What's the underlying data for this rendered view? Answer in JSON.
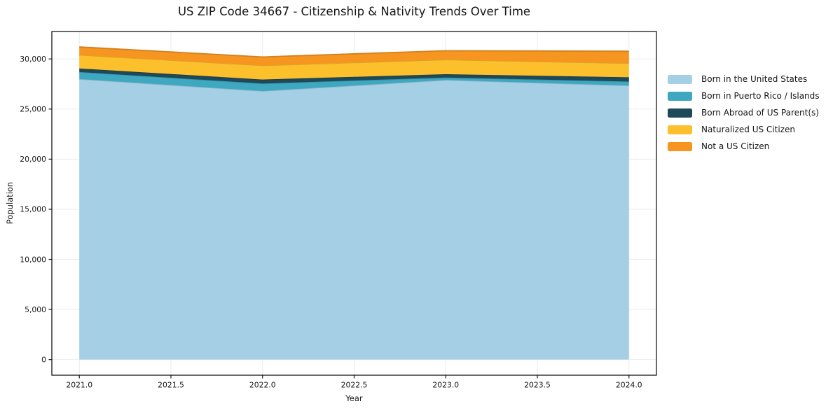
{
  "chart_data": {
    "type": "area",
    "stacked": true,
    "title": "US ZIP Code 34667 - Citizenship & Nativity Trends Over Time",
    "xlabel": "Year",
    "ylabel": "Population",
    "x": [
      2021,
      2022,
      2023,
      2024
    ],
    "series": [
      {
        "name": "Born in the United States",
        "color": "#a5cfe4",
        "values": [
          28000,
          26800,
          27900,
          27350
        ]
      },
      {
        "name": "Born in Puerto Rico / Islands",
        "color": "#3da8c0",
        "values": [
          700,
          750,
          250,
          400
        ]
      },
      {
        "name": "Born Abroad of US Parent(s)",
        "color": "#1f4859",
        "values": [
          350,
          400,
          330,
          420
        ]
      },
      {
        "name": "Naturalized US Citizen",
        "color": "#fcc02d",
        "values": [
          1350,
          1400,
          1450,
          1400
        ]
      },
      {
        "name": "Not a US Citizen",
        "color": "#f79521",
        "values": [
          800,
          850,
          890,
          1200
        ]
      }
    ],
    "xlim": [
      2020.85,
      2024.15
    ],
    "ylim": [
      -1560,
      32740
    ],
    "xticks": [
      2021.0,
      2021.5,
      2022.0,
      2022.5,
      2023.0,
      2023.5,
      2024.0
    ],
    "xtick_labels": [
      "2021.0",
      "2021.5",
      "2022.0",
      "2022.5",
      "2023.0",
      "2023.5",
      "2024.0"
    ],
    "yticks": [
      0,
      5000,
      10000,
      15000,
      20000,
      25000,
      30000
    ],
    "ytick_labels": [
      "0",
      "5,000",
      "10,000",
      "15,000",
      "20,000",
      "25,000",
      "30,000"
    ],
    "grid": true,
    "legend_position": "right",
    "colors": {
      "grid": "#ebebeb",
      "axis": "#161616",
      "text": "#151515",
      "plot_background": "#ffffff"
    }
  }
}
